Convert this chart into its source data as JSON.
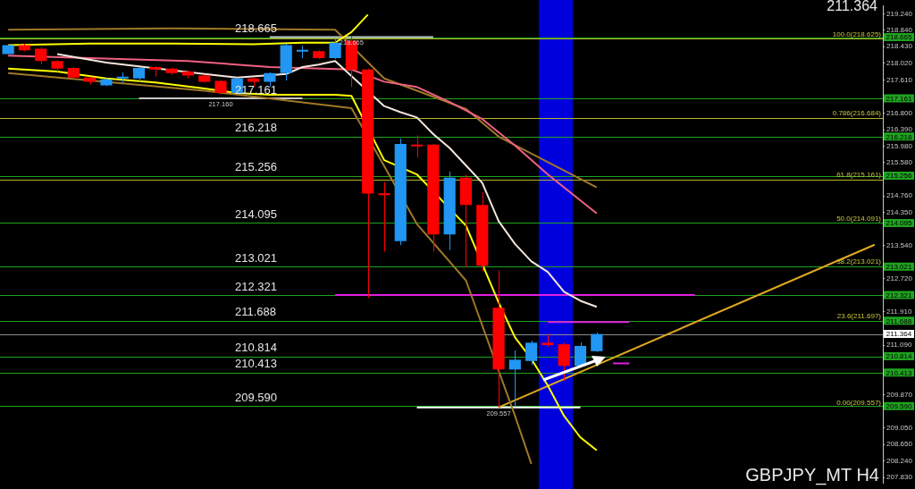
{
  "chart_data": {
    "type": "candlestick",
    "title": "GBPJPY_MT H4",
    "annotations": [
      "211.364",
      {
        "text": "100.0(218.625)",
        "y": 218.625
      },
      {
        "text": "0.786(216.684)",
        "y": 216.684
      },
      {
        "text": "61.8(215.161)",
        "y": 215.161
      },
      {
        "text": "50.0(214.091)",
        "y": 214.091
      },
      {
        "text": "38.2(213.021)",
        "y": 213.021
      },
      {
        "text": "23.6(211.697)",
        "y": 211.697
      },
      {
        "text": "0.00(209.557)",
        "y": 209.557
      }
    ],
    "categories": [
      null,
      null,
      null,
      null,
      null,
      null,
      null,
      null,
      null,
      null,
      null,
      null,
      null,
      null,
      null,
      null,
      null,
      null,
      null,
      null,
      null,
      null,
      null,
      null,
      null,
      null,
      null,
      null,
      null,
      null,
      null,
      null,
      null,
      null,
      null,
      null,
      null,
      null,
      null,
      null,
      null,
      null,
      null,
      null,
      null,
      null,
      null,
      null,
      null,
      null,
      null,
      null,
      null,
      null
    ],
    "ohlc": [
      [
        218.25,
        218.47,
        218.25,
        218.47
      ],
      [
        218.47,
        218.5,
        218.32,
        218.34
      ],
      [
        218.38,
        218.42,
        218.0,
        218.08
      ],
      [
        218.08,
        218.1,
        217.82,
        217.89
      ],
      [
        217.91,
        217.93,
        217.65,
        217.67
      ],
      [
        217.67,
        217.69,
        217.5,
        217.57
      ],
      [
        217.48,
        217.65,
        217.46,
        217.63
      ],
      [
        217.65,
        217.8,
        217.55,
        217.68
      ],
      [
        217.65,
        217.93,
        217.55,
        217.91
      ],
      [
        217.93,
        217.95,
        217.7,
        217.87
      ],
      [
        217.89,
        217.91,
        217.74,
        217.78
      ],
      [
        217.82,
        217.84,
        217.65,
        217.72
      ],
      [
        217.72,
        217.74,
        217.55,
        217.57
      ],
      [
        217.59,
        217.61,
        217.25,
        217.29
      ],
      [
        217.29,
        217.67,
        217.27,
        217.65
      ],
      [
        217.65,
        217.67,
        217.45,
        217.57
      ],
      [
        217.57,
        217.8,
        217.45,
        217.78
      ],
      [
        217.78,
        218.5,
        217.6,
        218.47
      ],
      [
        218.31,
        218.45,
        218.15,
        218.34
      ],
      [
        218.32,
        218.34,
        218.13,
        218.15
      ],
      [
        218.15,
        218.62,
        218.13,
        218.53
      ],
      [
        218.58,
        218.68,
        217.44,
        217.86
      ],
      [
        217.87,
        217.89,
        212.25,
        214.82
      ],
      [
        214.82,
        215.1,
        213.39,
        214.78
      ],
      [
        213.65,
        216.17,
        213.55,
        216.04
      ],
      [
        216.02,
        216.25,
        215.7,
        215.98
      ],
      [
        216.02,
        216.04,
        213.39,
        213.81
      ],
      [
        213.81,
        215.36,
        213.43,
        215.21
      ],
      [
        215.21,
        215.28,
        213.0,
        214.54
      ],
      [
        214.54,
        214.85,
        212.9,
        213.04
      ],
      [
        212.01,
        212.93,
        209.557,
        210.49
      ],
      [
        210.49,
        210.96,
        209.57,
        210.73
      ],
      [
        210.7,
        211.2,
        210.6,
        211.15
      ],
      [
        211.15,
        211.35,
        211.05,
        211.09
      ],
      [
        211.11,
        211.15,
        210.21,
        210.58
      ],
      [
        210.58,
        211.16,
        210.55,
        211.07
      ],
      [
        210.94,
        211.4,
        210.92,
        211.364
      ],
      null,
      null,
      null,
      null,
      null,
      null,
      null,
      null,
      null,
      null,
      null,
      null,
      null,
      null,
      null,
      null,
      null
    ],
    "colors": [
      "#2196f3",
      "#ff0000",
      "#ff0000",
      "#ff0000",
      "#ff0000",
      "#ff0000",
      "#2196f3",
      "#2196f3",
      "#2196f3",
      "#ff0000",
      "#ff0000",
      "#ff0000",
      "#ff0000",
      "#ff0000",
      "#2196f3",
      "#ff0000",
      "#2196f3",
      "#2196f3",
      "#2196f3",
      "#ff0000",
      "#2196f3",
      "#ff0000",
      "#ff0000",
      "#ff0000",
      "#2196f3",
      "#ff0000",
      "#ff0000",
      "#2196f3",
      "#ff0000",
      "#ff0000",
      "#ff0000",
      "#2196f3",
      "#2196f3",
      "#ff0000",
      "#ff0000",
      "#2196f3",
      "#2196f3",
      null,
      null,
      null,
      null,
      null,
      null,
      null,
      null,
      null,
      null,
      null,
      null,
      null,
      null,
      null,
      null,
      null
    ],
    "series": [
      {
        "type": "line",
        "color": "#ffff00",
        "values": [
          217.89,
          null,
          null,
          217.82,
          null,
          null,
          217.65,
          null,
          null,
          217.55,
          null,
          null,
          217.4,
          null,
          217.29,
          null,
          217.25,
          null,
          null,
          null,
          217.25,
          217.22,
          null,
          215.64,
          null,
          215.29,
          null,
          null,
          214.03,
          null,
          212.14,
          211.28,
          210.75,
          210.1,
          209.35,
          208.82,
          208.5,
          null,
          null,
          null,
          null,
          null,
          null,
          null,
          null,
          null,
          null,
          null,
          null,
          null,
          null,
          null,
          null,
          null
        ]
      },
      {
        "type": "line",
        "color": "#ffff00",
        "values": [
          218.47,
          null,
          null,
          null,
          null,
          218.51,
          null,
          null,
          null,
          null,
          218.51,
          null,
          null,
          null,
          null,
          218.49,
          null,
          null,
          218.53,
          null,
          218.53,
          218.79,
          219.22,
          null,
          null,
          null,
          null,
          null,
          null,
          null,
          null,
          null,
          null,
          null,
          null,
          null,
          null,
          null,
          null,
          null,
          null,
          null,
          null,
          null,
          null,
          null,
          null,
          null,
          null,
          null,
          null,
          null,
          null,
          null
        ]
      },
      {
        "type": "line",
        "color": "#f5e6dc",
        "values": [
          null,
          null,
          null,
          218.25,
          null,
          null,
          218.04,
          null,
          null,
          null,
          null,
          null,
          217.76,
          null,
          217.67,
          null,
          null,
          217.76,
          217.93,
          217.99,
          218.08,
          null,
          null,
          216.97,
          216.82,
          216.69,
          216.28,
          215.94,
          215.51,
          215.08,
          214.14,
          213.58,
          213.15,
          212.89,
          212.4,
          212.18,
          212.03,
          null,
          null,
          null,
          null,
          null,
          null,
          null,
          null,
          null,
          null,
          null,
          null,
          null,
          null,
          null,
          null,
          null
        ]
      },
      {
        "type": "line",
        "color": "#f06080",
        "values": [
          218.21,
          null,
          null,
          null,
          null,
          218.15,
          null,
          null,
          null,
          null,
          null,
          218.08,
          null,
          null,
          null,
          null,
          217.93,
          null,
          null,
          null,
          null,
          217.87,
          null,
          217.57,
          null,
          217.44,
          null,
          217.07,
          null,
          216.65,
          null,
          216.0,
          null,
          215.29,
          null,
          null,
          214.33,
          null,
          null,
          null,
          null,
          null,
          null,
          null,
          null,
          null,
          null,
          null,
          null,
          null,
          null,
          null,
          null,
          null
        ]
      },
      {
        "type": "line",
        "color": "#a07828",
        "values": [
          218.85,
          null,
          null,
          null,
          null,
          null,
          null,
          null,
          null,
          null,
          218.88,
          null,
          null,
          null,
          null,
          null,
          null,
          null,
          null,
          null,
          218.85,
          null,
          null,
          217.65,
          null,
          null,
          null,
          null,
          216.9,
          null,
          216.22,
          null,
          null,
          null,
          null,
          null,
          214.97,
          null,
          null,
          null,
          null,
          null,
          null,
          null,
          null,
          null,
          null,
          null,
          null,
          null,
          null,
          null,
          null,
          null
        ]
      },
      {
        "type": "line",
        "color": "#a07828",
        "values": [
          217.78,
          null,
          null,
          null,
          null,
          null,
          null,
          null,
          null,
          null,
          null,
          null,
          217.35,
          null,
          null,
          null,
          null,
          null,
          null,
          null,
          null,
          216.92,
          null,
          null,
          null,
          214.07,
          null,
          null,
          212.68,
          null,
          null,
          209.35,
          208.17,
          null,
          null,
          null,
          null,
          null,
          null,
          null,
          null,
          null,
          null,
          null,
          null,
          null,
          null,
          null,
          null,
          null,
          null,
          null,
          null,
          null
        ]
      },
      {
        "type": "line",
        "color": "#e0a820",
        "values": [
          null,
          null,
          null,
          null,
          null,
          null,
          null,
          null,
          null,
          null,
          null,
          null,
          null,
          null,
          null,
          null,
          null,
          null,
          null,
          null,
          null,
          null,
          null,
          null,
          null,
          null,
          null,
          null,
          null,
          null,
          209.56,
          null,
          null,
          null,
          null,
          null,
          null,
          null,
          null,
          null,
          null,
          null,
          null,
          null,
          null,
          null,
          null,
          null,
          null,
          null,
          null,
          null,
          null,
          213.56
        ]
      },
      {
        "type": "line",
        "color": "#e020e0",
        "values": [
          null,
          null,
          null,
          null,
          null,
          null,
          null,
          null,
          null,
          null,
          null,
          null,
          null,
          null,
          null,
          null,
          null,
          null,
          null,
          null,
          212.32,
          null,
          null,
          null,
          null,
          null,
          null,
          null,
          null,
          null,
          null,
          null,
          null,
          null,
          null,
          null,
          null,
          null,
          null,
          null,
          null,
          null,
          212.32,
          null,
          null,
          null,
          null,
          null,
          null,
          null,
          null,
          null,
          null,
          null
        ]
      },
      {
        "type": "line",
        "color": "#e020e0",
        "values": [
          null,
          null,
          null,
          null,
          null,
          null,
          null,
          null,
          null,
          null,
          null,
          null,
          null,
          null,
          null,
          null,
          null,
          null,
          null,
          null,
          null,
          null,
          null,
          null,
          null,
          null,
          null,
          null,
          null,
          null,
          null,
          null,
          null,
          211.66,
          null,
          null,
          null,
          null,
          211.66,
          null,
          null,
          null,
          null,
          null,
          null,
          null,
          null,
          null,
          null,
          null,
          null,
          null,
          null,
          null
        ]
      },
      {
        "type": "line",
        "color": "#e020e0",
        "values": [
          null,
          null,
          null,
          null,
          null,
          null,
          null,
          null,
          null,
          null,
          null,
          null,
          null,
          null,
          null,
          null,
          null,
          null,
          null,
          null,
          null,
          null,
          null,
          null,
          null,
          null,
          null,
          null,
          null,
          null,
          null,
          null,
          null,
          null,
          null,
          null,
          null,
          210.64,
          210.64,
          null,
          null,
          null,
          null,
          null,
          null,
          null,
          null,
          null,
          null,
          null,
          null,
          null,
          null,
          null
        ]
      },
      {
        "type": "line",
        "color": "#c8c8c8",
        "values": [
          null,
          null,
          null,
          null,
          null,
          null,
          null,
          null,
          null,
          null,
          null,
          null,
          null,
          null,
          null,
          null,
          218.665,
          null,
          null,
          null,
          null,
          218.665,
          null,
          null,
          null,
          null,
          218.665,
          null,
          null,
          null,
          null,
          null,
          null,
          null,
          null,
          null,
          null,
          null,
          null,
          null,
          null,
          null,
          null,
          null,
          null,
          null,
          null,
          null,
          null,
          null,
          null,
          null,
          null,
          null
        ],
        "value_labels": [
          null,
          null,
          null,
          null,
          null,
          null,
          null,
          null,
          null,
          null,
          null,
          null,
          null,
          null,
          null,
          null,
          null,
          null,
          null,
          null,
          null,
          "218.665",
          null,
          null,
          null,
          null,
          null,
          null,
          null,
          null,
          null,
          null,
          null,
          null,
          null,
          null,
          null,
          null,
          null,
          null,
          null,
          null,
          null,
          null,
          null,
          null,
          null,
          null,
          null,
          null,
          null,
          null,
          null,
          null
        ]
      },
      {
        "type": "line",
        "color": "#c8c8c8",
        "values": [
          null,
          null,
          null,
          null,
          null,
          null,
          null,
          null,
          217.16,
          null,
          null,
          null,
          null,
          217.16,
          null,
          null,
          null,
          null,
          217.16,
          null,
          null,
          null,
          null,
          null,
          null,
          null,
          null,
          null,
          null,
          null,
          null,
          null,
          null,
          null,
          null,
          null,
          null,
          null,
          null,
          null,
          null,
          null,
          null,
          null,
          null,
          null,
          null,
          null,
          null,
          null,
          null,
          null,
          null,
          null
        ],
        "value_labels": [
          null,
          null,
          null,
          null,
          null,
          null,
          null,
          null,
          null,
          null,
          null,
          null,
          null,
          "217.160",
          null,
          null,
          null,
          null,
          null,
          null,
          null,
          null,
          null,
          null,
          null,
          null,
          null,
          null,
          null,
          null,
          null,
          null,
          null,
          null,
          null,
          null,
          null,
          null,
          null,
          null,
          null,
          null,
          null,
          null,
          null,
          null,
          null,
          null,
          null,
          null,
          null,
          null,
          null,
          null
        ]
      },
      {
        "type": "line",
        "color": "#ffffff",
        "values": [
          null,
          null,
          null,
          null,
          null,
          null,
          null,
          null,
          null,
          null,
          null,
          null,
          null,
          null,
          null,
          null,
          null,
          null,
          null,
          null,
          null,
          null,
          null,
          null,
          null,
          209.557,
          null,
          null,
          null,
          null,
          209.557,
          null,
          null,
          null,
          null,
          209.557,
          null,
          null,
          null,
          null,
          null,
          null,
          null,
          null,
          null,
          null,
          null,
          null,
          null,
          null,
          null,
          null,
          null,
          null
        ],
        "value_labels": [
          null,
          null,
          null,
          null,
          null,
          null,
          null,
          null,
          null,
          null,
          null,
          null,
          null,
          null,
          null,
          null,
          null,
          null,
          null,
          null,
          null,
          null,
          null,
          null,
          null,
          null,
          null,
          null,
          null,
          null,
          "209.557",
          null,
          null,
          null,
          null,
          null,
          null,
          null,
          null,
          null,
          null,
          null,
          null,
          null,
          null,
          null,
          null,
          null,
          null,
          null,
          null,
          null,
          null,
          null
        ]
      }
    ],
    "ylim": [
      207.7,
      219.43
    ],
    "yticks": [
      {
        "value": 219.24,
        "label": "219.240"
      },
      {
        "value": 218.84,
        "label": "218.840"
      },
      {
        "value": 218.43,
        "label": "218.430"
      },
      {
        "value": 218.02,
        "label": "218.020"
      },
      {
        "value": 217.61,
        "label": "217.610"
      },
      {
        "value": 216.8,
        "label": "216.800"
      },
      {
        "value": 216.39,
        "label": "216.390"
      },
      {
        "value": 215.98,
        "label": "215.980"
      },
      {
        "value": 215.58,
        "label": "215.580"
      },
      {
        "value": 214.76,
        "label": "214.760"
      },
      {
        "value": 214.35,
        "label": "214.350"
      },
      {
        "value": 213.54,
        "label": "213.540"
      },
      {
        "value": 212.72,
        "label": "212.720"
      },
      {
        "value": 211.91,
        "label": "211.910"
      },
      {
        "value": 211.09,
        "label": "211.090"
      },
      {
        "value": 209.87,
        "label": "209.870"
      },
      {
        "value": 209.05,
        "label": "209.050"
      },
      {
        "value": 208.65,
        "label": "208.650"
      },
      {
        "value": 208.24,
        "label": "208.240"
      },
      {
        "value": 207.83,
        "label": "207.830"
      }
    ],
    "ref_lines": [
      {
        "axis": "y",
        "value": 218.665,
        "label": "218.665",
        "color": "#1fa31f"
      },
      {
        "axis": "y",
        "value": 217.161,
        "label": "217.161",
        "color": "#1fa31f"
      },
      {
        "axis": "y",
        "value": 216.218,
        "label": "216.218",
        "color": "#1fa31f"
      },
      {
        "axis": "y",
        "value": 215.256,
        "label": "215.256",
        "color": "#1fa31f"
      },
      {
        "axis": "y",
        "value": 214.095,
        "label": "214.095",
        "color": "#1fa31f"
      },
      {
        "axis": "y",
        "value": 213.021,
        "label": "213.021",
        "color": "#1fa31f"
      },
      {
        "axis": "y",
        "value": 212.321,
        "label": "212.321",
        "color": "#1fa31f"
      },
      {
        "axis": "y",
        "value": 211.688,
        "label": "211.688",
        "color": "#1fa31f"
      },
      {
        "axis": "y",
        "value": 210.814,
        "label": "210.814",
        "color": "#1fa31f"
      },
      {
        "axis": "y",
        "value": 210.413,
        "label": "210.413",
        "color": "#1fa31f"
      },
      {
        "axis": "y",
        "value": 209.59,
        "label": "209.590",
        "color": "#1fa31f"
      },
      {
        "axis": "y",
        "value": 218.625,
        "color": "#b4b428"
      },
      {
        "axis": "y",
        "value": 216.684,
        "color": "#b4b428"
      },
      {
        "axis": "y",
        "value": 215.161,
        "color": "#b4b428"
      },
      {
        "axis": "y",
        "value": 211.364,
        "color": "#8c8c8c"
      }
    ],
    "tick_labels": "y",
    "grid": false,
    "legend": false
  }
}
